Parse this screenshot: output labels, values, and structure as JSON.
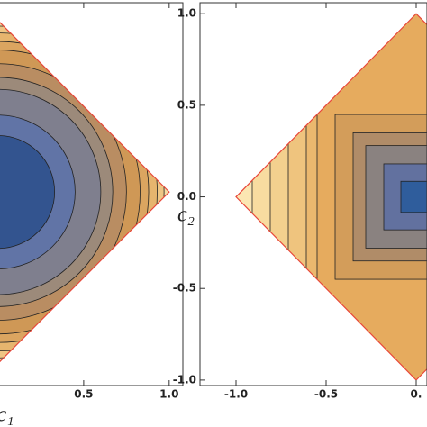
{
  "chart_data": [
    {
      "type": "contour",
      "xlabel": "c₁",
      "xlim": [
        -0.1,
        1.08
      ],
      "ylim": [
        -1.13,
        1.105
      ],
      "xticks": [
        {
          "value": 0.5,
          "label": "0.5"
        },
        {
          "value": 1,
          "label": "1.0"
        }
      ],
      "yticks": [],
      "boundary": 1,
      "boundary_color": "#e8473a",
      "base_color": "#f7d9a0",
      "shape": "circle",
      "levels": [
        0.97,
        0.93,
        0.88,
        0.83,
        0.75,
        0.67,
        0.6,
        0.45,
        0.33
      ],
      "colors": [
        "#efc684",
        "#e6b56e",
        "#dba560",
        "#cf9856",
        "#b98d62",
        "#9c8a7a",
        "#7f7f8e",
        "#6174a6",
        "#33548f"
      ]
    },
    {
      "type": "contour",
      "ylabel": "c₂",
      "xlim": [
        -1.2,
        0.06
      ],
      "ylim": [
        -1.03,
        1.06
      ],
      "xticks": [
        {
          "value": -1,
          "label": "-1.0"
        },
        {
          "value": -0.5,
          "label": "-0.5"
        },
        {
          "value": 0,
          "label": "0."
        }
      ],
      "yticks": [
        {
          "value": 1,
          "label": "1.0"
        },
        {
          "value": 0.5,
          "label": "0.5"
        },
        {
          "value": 0,
          "label": "0.0"
        },
        {
          "value": -0.5,
          "label": "-0.5"
        },
        {
          "value": -1,
          "label": "-1.0"
        }
      ],
      "boundary": 1,
      "boundary_color": "#e8473a",
      "base_color": "#fbe6b2",
      "shape": "box",
      "levels": [
        [
          0.91,
          null
        ],
        [
          0.81,
          null
        ],
        [
          0.71,
          null
        ],
        [
          0.61,
          null
        ],
        [
          0.55,
          null
        ],
        [
          0.45,
          0.45
        ],
        [
          0.35,
          0.35
        ],
        [
          0.28,
          0.28
        ],
        [
          0.18,
          0.18
        ],
        [
          0.085,
          0.085
        ]
      ],
      "colors": [
        "#f8dca0",
        "#f3d08e",
        "#efc47e",
        "#ebb86e",
        "#e6ab5e",
        "#d39d5a",
        "#b08c68",
        "#8a8280",
        "#62719f",
        "#2f5d9c"
      ]
    }
  ]
}
